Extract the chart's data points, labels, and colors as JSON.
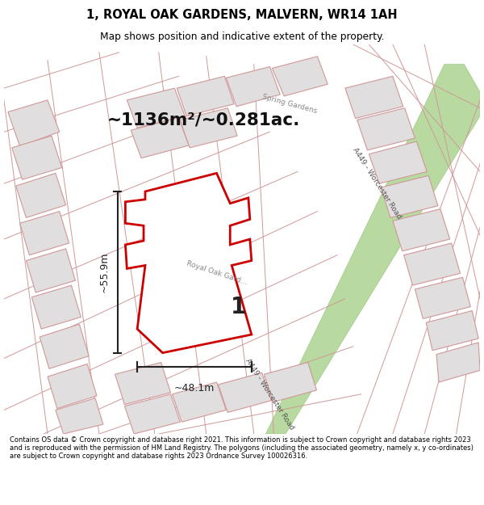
{
  "title": "1, ROYAL OAK GARDENS, MALVERN, WR14 1AH",
  "subtitle": "Map shows position and indicative extent of the property.",
  "area_text": "~1136m²/~0.281ac.",
  "dim_width": "~48.1m",
  "dim_height": "~55.9m",
  "label_number": "1",
  "road_label1": "A449 - Worcester Road",
  "road_label2": "A449 - Worcester Road",
  "street_label": "Royal Oak Garde...",
  "spring_label": "Spring Gardens",
  "footer": "Contains OS data © Crown copyright and database right 2021. This information is subject to Crown copyright and database rights 2023 and is reproduced with the permission of HM Land Registry. The polygons (including the associated geometry, namely x, y co-ordinates) are subject to Crown copyright and database rights 2023 Ordnance Survey 100026316.",
  "map_bg": "#f2eded",
  "road_green_fill": "#b8d9a0",
  "road_green_edge": "#a0c888",
  "plot_outline_color": "#cc0000",
  "building_fill": "#e0dede",
  "building_edge": "#d09898",
  "street_line_color": "#d09898",
  "header_bg": "#ffffff",
  "footer_bg": "#ffffff",
  "dim_color": "#222222",
  "text_color": "#333333",
  "area_color": "#111111",
  "number_color": "#222222"
}
